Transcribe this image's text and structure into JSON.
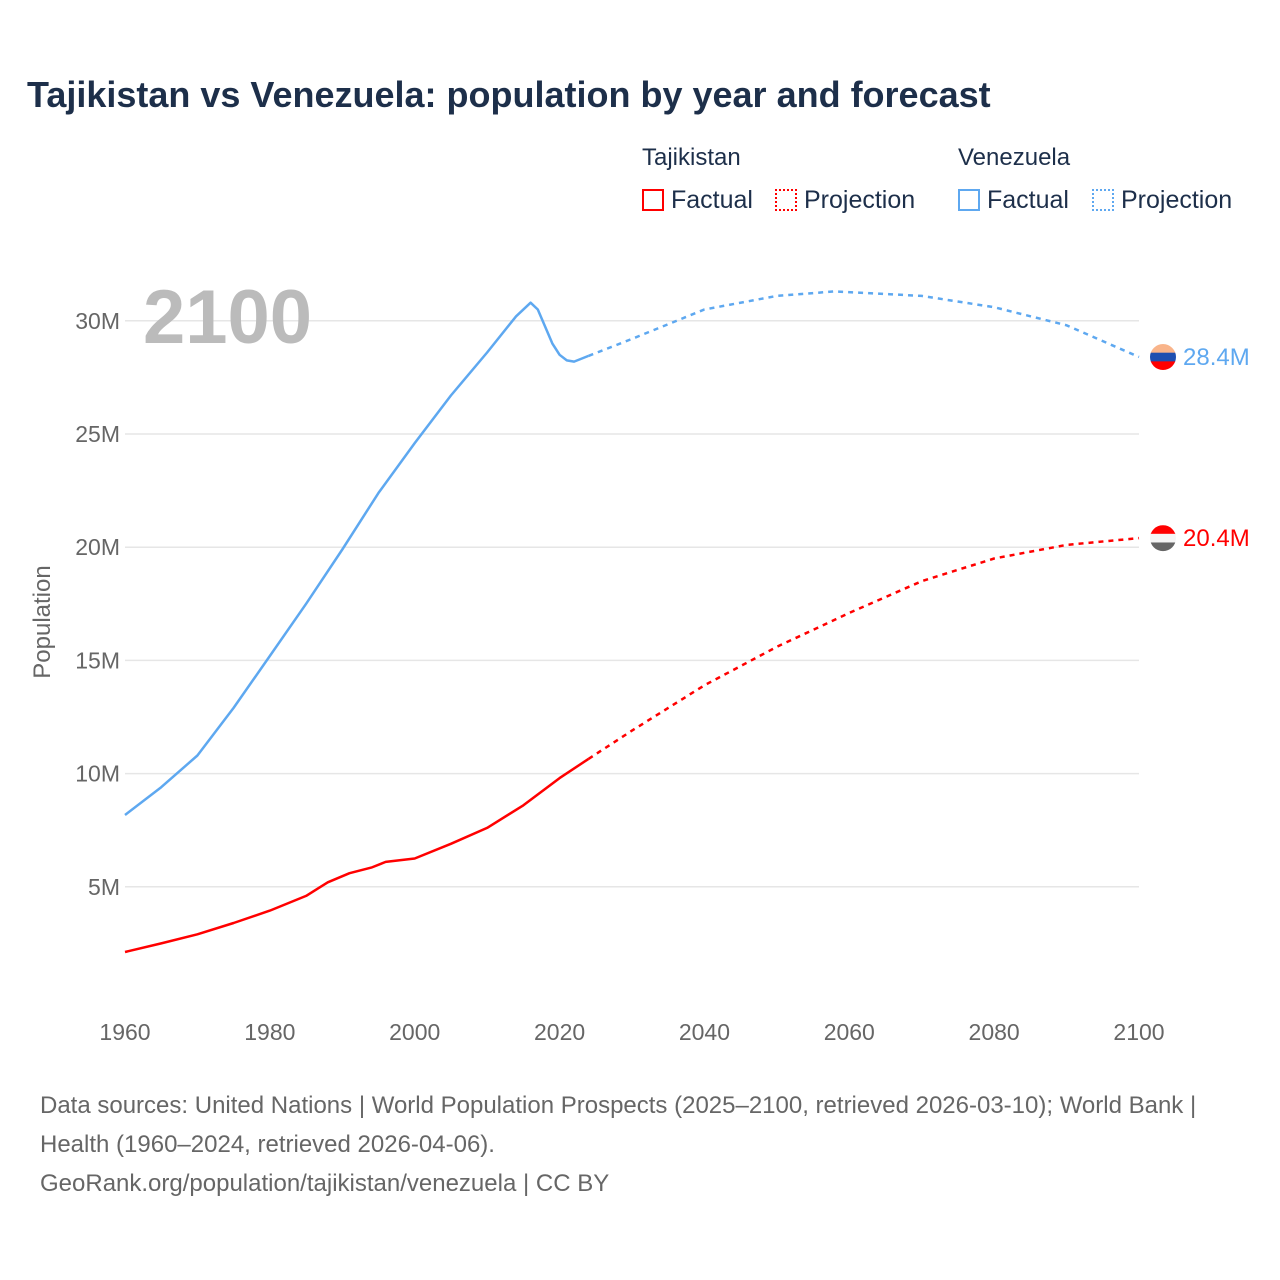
{
  "title": "Tajikistan vs Venezuela: population by year and forecast",
  "legend": {
    "groups": [
      {
        "name": "Tajikistan",
        "factual": "Factual",
        "projection": "Projection",
        "color": "#ff0000"
      },
      {
        "name": "Venezuela",
        "factual": "Factual",
        "projection": "Projection",
        "color": "#5ea8f0"
      }
    ]
  },
  "year_watermark": "2100",
  "footer": {
    "sources": "Data sources: United Nations | World Population Prospects (2025–2100, retrieved 2026-03-10); World Bank | Health (1960–2024, retrieved 2026-04-06).",
    "credit": "GeoRank.org/population/tajikistan/venezuela | CC BY"
  },
  "chart_data": {
    "type": "line",
    "title": "Tajikistan vs Venezuela: population by year and forecast",
    "xlabel": "",
    "ylabel": "Population",
    "xlim": [
      1960,
      2100
    ],
    "ylim": [
      0,
      32
    ],
    "x_ticks": [
      1960,
      1980,
      2000,
      2020,
      2040,
      2060,
      2080,
      2100
    ],
    "x_tick_labels": [
      "1960",
      "1980",
      "2000",
      "2020",
      "2040",
      "2060",
      "2080",
      "2100"
    ],
    "y_ticks": [
      5,
      10,
      15,
      20,
      25,
      30
    ],
    "y_tick_labels": [
      "5M",
      "10M",
      "15M",
      "20M",
      "25M",
      "30M"
    ],
    "grid": true,
    "legend_position": "top-right",
    "units": "millions",
    "series": [
      {
        "name": "Venezuela",
        "color": "#5ea8f0",
        "end_label": "28.4M",
        "factual": [
          [
            1960,
            8.17
          ],
          [
            1965,
            9.4
          ],
          [
            1970,
            10.8
          ],
          [
            1975,
            12.9
          ],
          [
            1980,
            15.2
          ],
          [
            1985,
            17.5
          ],
          [
            1990,
            19.9
          ],
          [
            1995,
            22.4
          ],
          [
            2000,
            24.6
          ],
          [
            2005,
            26.7
          ],
          [
            2010,
            28.6
          ],
          [
            2014,
            30.2
          ],
          [
            2016,
            30.8
          ],
          [
            2017,
            30.5
          ],
          [
            2019,
            29.0
          ],
          [
            2020,
            28.5
          ],
          [
            2021,
            28.25
          ],
          [
            2022,
            28.2
          ],
          [
            2024,
            28.45
          ]
        ],
        "projection": [
          [
            2024,
            28.45
          ],
          [
            2030,
            29.2
          ],
          [
            2040,
            30.5
          ],
          [
            2050,
            31.1
          ],
          [
            2058,
            31.3
          ],
          [
            2070,
            31.1
          ],
          [
            2080,
            30.6
          ],
          [
            2090,
            29.8
          ],
          [
            2100,
            28.4
          ]
        ]
      },
      {
        "name": "Tajikistan",
        "color": "#ff0000",
        "end_label": "20.4M",
        "factual": [
          [
            1960,
            2.12
          ],
          [
            1965,
            2.5
          ],
          [
            1970,
            2.9
          ],
          [
            1975,
            3.4
          ],
          [
            1980,
            3.95
          ],
          [
            1985,
            4.6
          ],
          [
            1988,
            5.2
          ],
          [
            1991,
            5.6
          ],
          [
            1994,
            5.85
          ],
          [
            1996,
            6.1
          ],
          [
            2000,
            6.25
          ],
          [
            2005,
            6.9
          ],
          [
            2010,
            7.6
          ],
          [
            2015,
            8.6
          ],
          [
            2020,
            9.8
          ],
          [
            2024,
            10.65
          ]
        ],
        "projection": [
          [
            2024,
            10.65
          ],
          [
            2030,
            11.9
          ],
          [
            2040,
            13.9
          ],
          [
            2050,
            15.6
          ],
          [
            2060,
            17.1
          ],
          [
            2070,
            18.5
          ],
          [
            2080,
            19.5
          ],
          [
            2090,
            20.1
          ],
          [
            2100,
            20.4
          ]
        ]
      }
    ]
  }
}
